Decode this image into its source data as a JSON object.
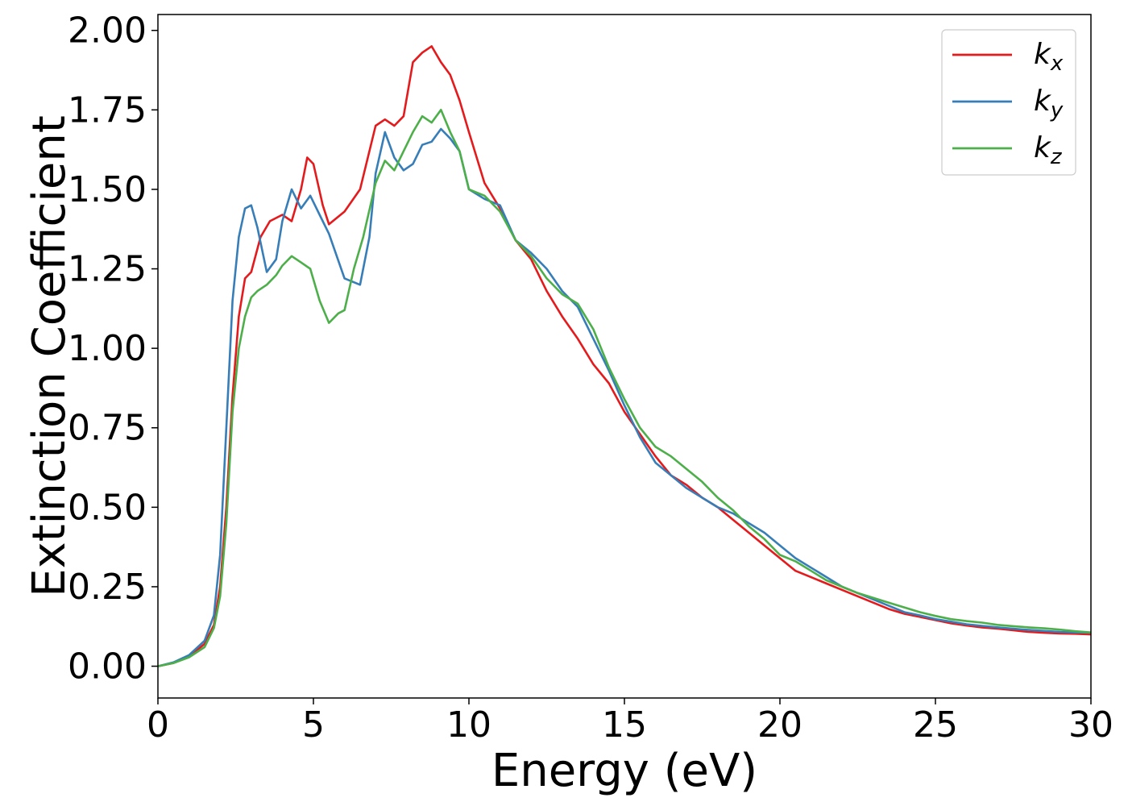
{
  "chart_data": {
    "type": "line",
    "title": "",
    "xlabel": "Energy (eV)",
    "ylabel": "Extinction Coefficient",
    "xlim": [
      0,
      30
    ],
    "ylim": [
      -0.1,
      2.05
    ],
    "xticks": [
      0,
      5,
      10,
      15,
      20,
      25,
      30
    ],
    "xtick_labels": [
      "0",
      "5",
      "10",
      "15",
      "20",
      "25",
      "30"
    ],
    "yticks": [
      0.0,
      0.25,
      0.5,
      0.75,
      1.0,
      1.25,
      1.5,
      1.75,
      2.0
    ],
    "ytick_labels": [
      "0.00",
      "0.25",
      "0.50",
      "0.75",
      "1.00",
      "1.25",
      "1.50",
      "1.75",
      "2.00"
    ],
    "grid": false,
    "legend_position": "top-right",
    "series": [
      {
        "name": "k",
        "subscript": "x",
        "color": "#e41a1c",
        "x": [
          0,
          0.5,
          1.0,
          1.5,
          1.8,
          2.0,
          2.2,
          2.4,
          2.6,
          2.8,
          3.0,
          3.3,
          3.6,
          4.0,
          4.3,
          4.6,
          4.8,
          5.0,
          5.3,
          5.5,
          6.0,
          6.5,
          7.0,
          7.3,
          7.6,
          7.9,
          8.2,
          8.5,
          8.8,
          9.1,
          9.4,
          9.7,
          10.0,
          10.5,
          11.0,
          11.5,
          12.0,
          12.5,
          13.0,
          13.5,
          14.0,
          14.5,
          15.0,
          15.5,
          16.0,
          16.5,
          17.0,
          17.5,
          18.0,
          18.5,
          19.0,
          19.5,
          20.0,
          20.5,
          21.0,
          21.5,
          22.0,
          22.5,
          23.0,
          23.5,
          24.0,
          24.5,
          25.0,
          25.5,
          26.0,
          26.5,
          27.0,
          27.5,
          28.0,
          28.5,
          29.0,
          29.5,
          30.0
        ],
        "y": [
          0.0,
          0.01,
          0.03,
          0.07,
          0.13,
          0.25,
          0.5,
          0.85,
          1.1,
          1.22,
          1.24,
          1.35,
          1.4,
          1.42,
          1.4,
          1.5,
          1.6,
          1.58,
          1.45,
          1.39,
          1.43,
          1.5,
          1.7,
          1.72,
          1.7,
          1.73,
          1.9,
          1.93,
          1.95,
          1.9,
          1.86,
          1.78,
          1.68,
          1.52,
          1.44,
          1.34,
          1.28,
          1.18,
          1.1,
          1.03,
          0.95,
          0.89,
          0.8,
          0.73,
          0.66,
          0.6,
          0.57,
          0.53,
          0.5,
          0.46,
          0.42,
          0.38,
          0.34,
          0.3,
          0.28,
          0.26,
          0.24,
          0.22,
          0.2,
          0.18,
          0.165,
          0.155,
          0.145,
          0.135,
          0.128,
          0.122,
          0.118,
          0.113,
          0.108,
          0.105,
          0.103,
          0.102,
          0.1
        ]
      },
      {
        "name": "k",
        "subscript": "y",
        "color": "#377eb8",
        "x": [
          0,
          0.5,
          1.0,
          1.5,
          1.8,
          2.0,
          2.2,
          2.4,
          2.6,
          2.8,
          3.0,
          3.2,
          3.5,
          3.8,
          4.0,
          4.3,
          4.6,
          4.9,
          5.2,
          5.5,
          6.0,
          6.5,
          6.8,
          7.0,
          7.3,
          7.6,
          7.9,
          8.2,
          8.5,
          8.8,
          9.1,
          9.4,
          9.7,
          10.0,
          10.5,
          11.0,
          11.5,
          12.0,
          12.5,
          13.0,
          13.5,
          14.0,
          14.5,
          15.0,
          15.5,
          16.0,
          16.5,
          17.0,
          17.5,
          18.0,
          18.5,
          19.0,
          19.5,
          20.0,
          20.5,
          21.0,
          21.5,
          22.0,
          22.5,
          23.0,
          23.5,
          24.0,
          24.5,
          25.0,
          25.5,
          26.0,
          26.5,
          27.0,
          27.5,
          28.0,
          28.5,
          29.0,
          29.5,
          30.0
        ],
        "y": [
          0.0,
          0.012,
          0.035,
          0.08,
          0.16,
          0.35,
          0.75,
          1.15,
          1.35,
          1.44,
          1.45,
          1.38,
          1.24,
          1.28,
          1.4,
          1.5,
          1.44,
          1.48,
          1.42,
          1.36,
          1.22,
          1.2,
          1.35,
          1.55,
          1.68,
          1.6,
          1.56,
          1.58,
          1.64,
          1.65,
          1.69,
          1.66,
          1.62,
          1.5,
          1.47,
          1.45,
          1.34,
          1.3,
          1.25,
          1.18,
          1.13,
          1.03,
          0.93,
          0.82,
          0.72,
          0.64,
          0.6,
          0.56,
          0.53,
          0.5,
          0.48,
          0.45,
          0.42,
          0.38,
          0.34,
          0.31,
          0.28,
          0.25,
          0.23,
          0.21,
          0.19,
          0.17,
          0.16,
          0.148,
          0.14,
          0.132,
          0.127,
          0.122,
          0.118,
          0.114,
          0.111,
          0.108,
          0.106,
          0.105
        ]
      },
      {
        "name": "k",
        "subscript": "z",
        "color": "#4daf4a",
        "x": [
          0,
          0.5,
          1.0,
          1.5,
          1.8,
          2.0,
          2.2,
          2.4,
          2.6,
          2.8,
          3.0,
          3.2,
          3.5,
          3.8,
          4.0,
          4.3,
          4.6,
          4.9,
          5.2,
          5.5,
          5.8,
          6.0,
          6.3,
          6.6,
          7.0,
          7.3,
          7.6,
          7.9,
          8.2,
          8.5,
          8.8,
          9.1,
          9.4,
          9.7,
          10.0,
          10.5,
          11.0,
          11.5,
          12.0,
          12.5,
          13.0,
          13.5,
          14.0,
          14.5,
          15.0,
          15.5,
          16.0,
          16.5,
          17.0,
          17.5,
          18.0,
          18.5,
          19.0,
          19.5,
          20.0,
          20.5,
          21.0,
          21.5,
          22.0,
          22.5,
          23.0,
          23.5,
          24.0,
          24.5,
          25.0,
          25.5,
          26.0,
          26.5,
          27.0,
          27.5,
          28.0,
          28.5,
          29.0,
          29.5,
          30.0
        ],
        "y": [
          0.0,
          0.01,
          0.028,
          0.06,
          0.12,
          0.22,
          0.45,
          0.8,
          1.0,
          1.1,
          1.16,
          1.18,
          1.2,
          1.23,
          1.26,
          1.29,
          1.27,
          1.25,
          1.15,
          1.08,
          1.11,
          1.12,
          1.25,
          1.35,
          1.52,
          1.59,
          1.56,
          1.62,
          1.68,
          1.73,
          1.71,
          1.75,
          1.68,
          1.62,
          1.5,
          1.48,
          1.43,
          1.34,
          1.29,
          1.22,
          1.17,
          1.14,
          1.06,
          0.94,
          0.84,
          0.75,
          0.69,
          0.66,
          0.62,
          0.58,
          0.53,
          0.49,
          0.44,
          0.4,
          0.35,
          0.33,
          0.3,
          0.27,
          0.25,
          0.23,
          0.215,
          0.2,
          0.185,
          0.17,
          0.158,
          0.148,
          0.142,
          0.137,
          0.13,
          0.126,
          0.122,
          0.119,
          0.115,
          0.11,
          0.106
        ]
      }
    ]
  }
}
